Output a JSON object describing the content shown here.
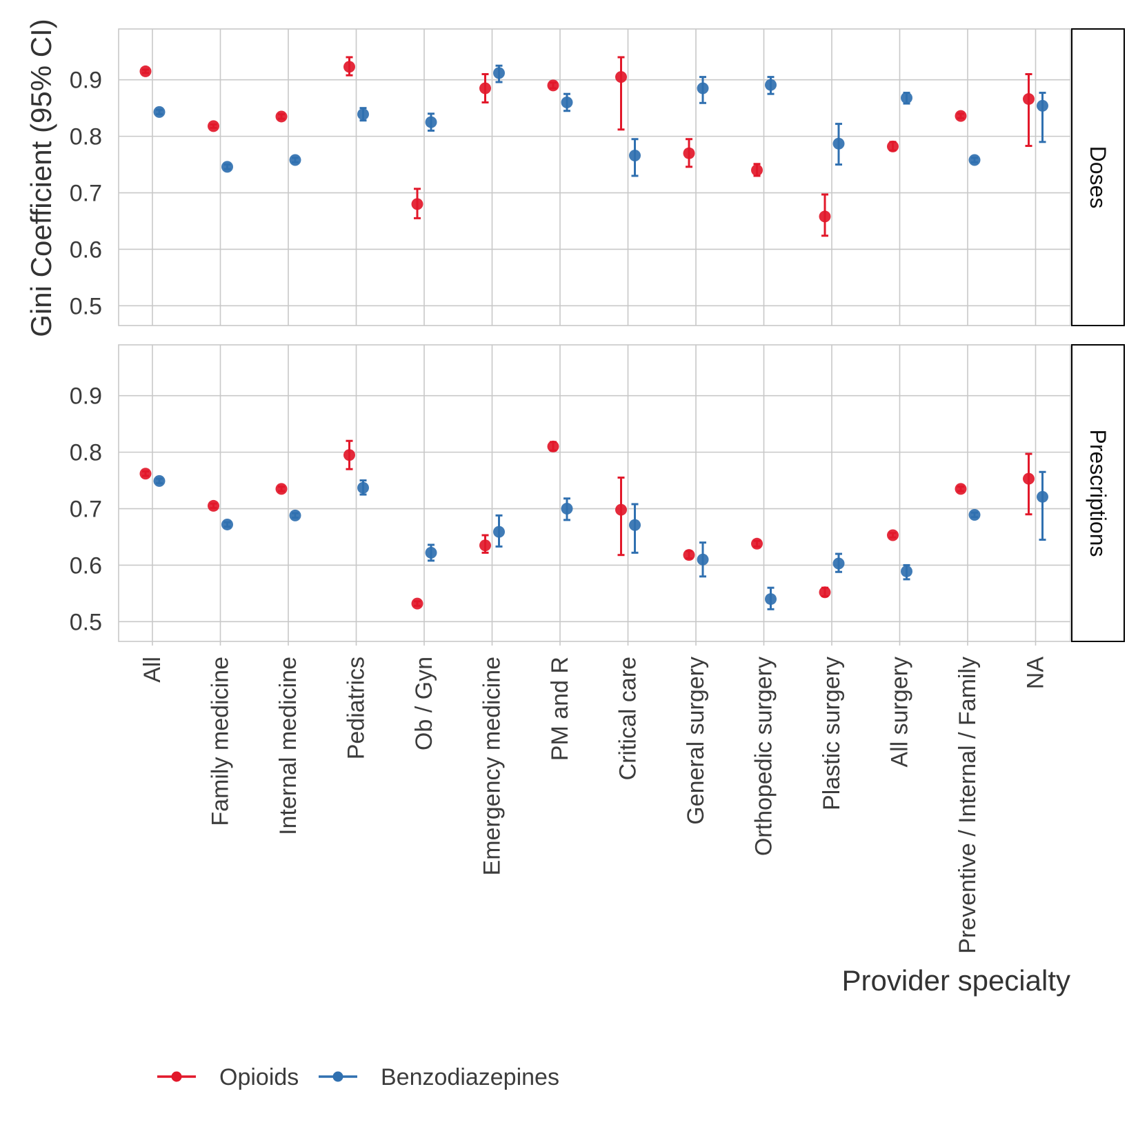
{
  "chart_data": {
    "type": "scatter",
    "ylabel": "Gini Coefficient (95% CI)",
    "xlabel": "Provider specialty",
    "categories": [
      "All",
      "Family medicine",
      "Internal medicine",
      "Pediatrics",
      "Ob / Gyn",
      "Emergency medicine",
      "PM and R",
      "Critical care",
      "General surgery",
      "Orthopedic surgery",
      "Plastic surgery",
      "All surgery",
      "Preventive / Internal / Family",
      "NA"
    ],
    "yticks": [
      0.5,
      0.6,
      0.7,
      0.8,
      0.9
    ],
    "ylim": [
      0.465,
      0.99
    ],
    "grid": true,
    "legend_position": "bottom-left",
    "colors": {
      "Opioids": "#e2182a",
      "Benzodiazepines": "#3070b0"
    },
    "panels": [
      {
        "name": "Doses",
        "series": [
          {
            "name": "Opioids",
            "values": [
              0.915,
              0.818,
              0.835,
              0.923,
              0.68,
              0.885,
              0.89,
              0.905,
              0.77,
              0.74,
              0.658,
              0.782,
              0.836,
              0.866
            ],
            "ci_low": [
              0.912,
              0.815,
              0.831,
              0.908,
              0.655,
              0.86,
              0.885,
              0.812,
              0.746,
              0.73,
              0.624,
              0.775,
              0.832,
              0.783
            ],
            "ci_high": [
              0.918,
              0.821,
              0.839,
              0.94,
              0.707,
              0.91,
              0.895,
              0.94,
              0.795,
              0.751,
              0.697,
              0.79,
              0.84,
              0.91
            ]
          },
          {
            "name": "Benzodiazepines",
            "values": [
              0.843,
              0.746,
              0.758,
              0.839,
              0.825,
              0.912,
              0.86,
              0.766,
              0.885,
              0.891,
              0.787,
              0.868,
              0.758,
              0.854
            ],
            "ci_low": [
              0.839,
              0.742,
              0.754,
              0.828,
              0.81,
              0.896,
              0.845,
              0.73,
              0.859,
              0.875,
              0.75,
              0.858,
              0.754,
              0.79
            ],
            "ci_high": [
              0.847,
              0.75,
              0.762,
              0.85,
              0.84,
              0.925,
              0.875,
              0.795,
              0.905,
              0.905,
              0.822,
              0.877,
              0.762,
              0.877
            ]
          }
        ]
      },
      {
        "name": "Prescriptions",
        "series": [
          {
            "name": "Opioids",
            "values": [
              0.762,
              0.705,
              0.735,
              0.795,
              0.532,
              0.635,
              0.81,
              0.698,
              0.618,
              0.638,
              0.552,
              0.653,
              0.735,
              0.753
            ],
            "ci_low": [
              0.758,
              0.701,
              0.731,
              0.77,
              0.528,
              0.622,
              0.803,
              0.618,
              0.612,
              0.633,
              0.545,
              0.649,
              0.731,
              0.69
            ],
            "ci_high": [
              0.766,
              0.709,
              0.739,
              0.82,
              0.536,
              0.653,
              0.818,
              0.755,
              0.625,
              0.643,
              0.56,
              0.657,
              0.739,
              0.797
            ]
          },
          {
            "name": "Benzodiazepines",
            "values": [
              0.749,
              0.672,
              0.688,
              0.737,
              0.622,
              0.659,
              0.7,
              0.671,
              0.61,
              0.54,
              0.603,
              0.589,
              0.689,
              0.721
            ],
            "ci_low": [
              0.745,
              0.668,
              0.684,
              0.725,
              0.608,
              0.633,
              0.68,
              0.622,
              0.58,
              0.522,
              0.588,
              0.575,
              0.685,
              0.645
            ],
            "ci_high": [
              0.753,
              0.676,
              0.692,
              0.75,
              0.636,
              0.688,
              0.718,
              0.708,
              0.64,
              0.56,
              0.62,
              0.6,
              0.693,
              0.765
            ]
          }
        ]
      }
    ]
  }
}
